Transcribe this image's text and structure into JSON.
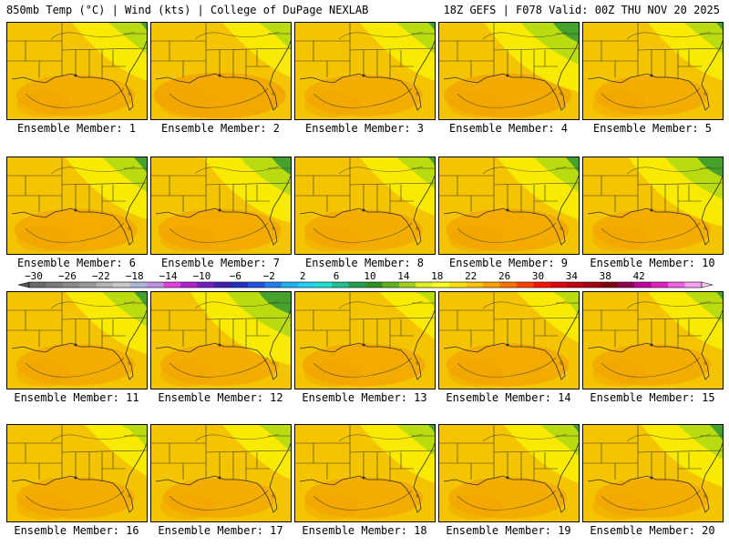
{
  "header": {
    "left": "850mb Temp (°C) | Wind (kts) | College of DuPage NEXLAB",
    "right": "18Z GEFS | F078 Valid: 00Z THU NOV 20 2025"
  },
  "members": [
    "Ensemble Member: 1",
    "Ensemble Member: 2",
    "Ensemble Member: 3",
    "Ensemble Member: 4",
    "Ensemble Member: 5",
    "Ensemble Member: 6",
    "Ensemble Member: 7",
    "Ensemble Member: 8",
    "Ensemble Member: 9",
    "Ensemble Member: 10",
    "Ensemble Member: 11",
    "Ensemble Member: 12",
    "Ensemble Member: 13",
    "Ensemble Member: 14",
    "Ensemble Member: 15",
    "Ensemble Member: 16",
    "Ensemble Member: 17",
    "Ensemble Member: 18",
    "Ensemble Member: 19",
    "Ensemble Member: 20"
  ],
  "colorbar": {
    "labels": [
      "−30",
      "−26",
      "−22",
      "−18",
      "−14",
      "−10",
      "−6",
      "−2",
      "2",
      "6",
      "10",
      "14",
      "18",
      "22",
      "26",
      "30",
      "34",
      "38",
      "42"
    ],
    "colors": [
      "#6a6a6a",
      "#7a7a7a",
      "#8a8a8a",
      "#9a9a9a",
      "#b4b4b4",
      "#c8c8c8",
      "#a8b8d8",
      "#c090e0",
      "#e040e0",
      "#b020d0",
      "#7020c0",
      "#4020b0",
      "#2030c0",
      "#2050e0",
      "#2080f0",
      "#20b0f0",
      "#20d0f0",
      "#20e0d0",
      "#20c090",
      "#20a050",
      "#309020",
      "#60b020",
      "#a0d020",
      "#e0f020",
      "#ffff20",
      "#ffe000",
      "#ffc000",
      "#ffa000",
      "#ff7000",
      "#ff4000",
      "#ff1000",
      "#e00010",
      "#c00010",
      "#a00010",
      "#800010",
      "#900050",
      "#c000a0",
      "#e020c0",
      "#f060e0",
      "#f8a0f0"
    ]
  },
  "colors": {
    "warm_main": "#f4c400",
    "warm_orange": "#f2a400",
    "cool_yellow": "#f8ee00",
    "green_light": "#b8dc10",
    "green_dark": "#46a22a",
    "outline": "#333333"
  },
  "panel_fields": [
    {
      "green": 0.6,
      "orange": 0.6
    },
    {
      "green": 0.5,
      "orange": 0.9
    },
    {
      "green": 0.6,
      "orange": 0.6
    },
    {
      "green": 0.9,
      "orange": 0.8
    },
    {
      "green": 0.6,
      "orange": 0.5
    },
    {
      "green": 0.7,
      "orange": 0.7
    },
    {
      "green": 0.8,
      "orange": 0.7
    },
    {
      "green": 0.6,
      "orange": 0.6
    },
    {
      "green": 0.7,
      "orange": 0.7
    },
    {
      "green": 0.9,
      "orange": 0.6
    },
    {
      "green": 0.7,
      "orange": 0.6
    },
    {
      "green": 1.0,
      "orange": 0.6
    },
    {
      "green": 0.3,
      "orange": 0.7
    },
    {
      "green": 0.4,
      "orange": 0.7
    },
    {
      "green": 0.6,
      "orange": 0.6
    },
    {
      "green": 0.4,
      "orange": 0.6
    },
    {
      "green": 0.5,
      "orange": 0.5
    },
    {
      "green": 0.6,
      "orange": 0.6
    },
    {
      "green": 0.6,
      "orange": 0.6
    },
    {
      "green": 0.7,
      "orange": 0.5
    }
  ]
}
